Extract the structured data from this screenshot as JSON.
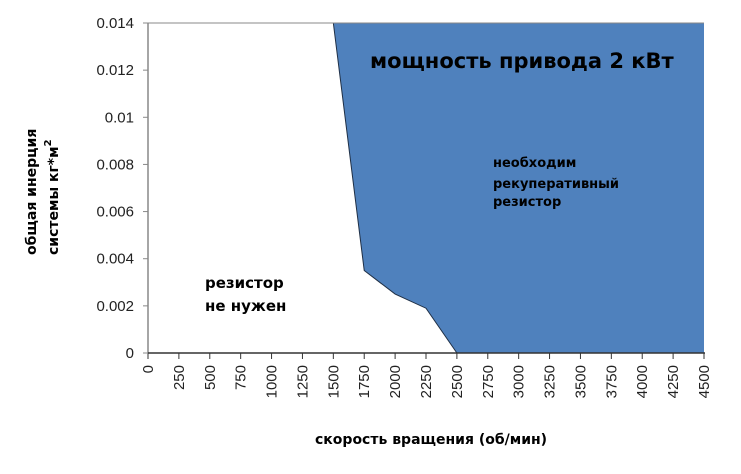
{
  "chart_data": {
    "type": "area",
    "title": "мощность привода 2 кВт",
    "xlabel": "скорость вращения (об/мин)",
    "ylabel_line1": "общая инерция",
    "ylabel_line2": "системы кг*м",
    "ylabel_sup": "2",
    "xlim": [
      0,
      4500
    ],
    "ylim": [
      0,
      0.014
    ],
    "x_ticks": [
      "0",
      "250",
      "500",
      "750",
      "1000",
      "1250",
      "1500",
      "1750",
      "2000",
      "2250",
      "2500",
      "2750",
      "3000",
      "3250",
      "3500",
      "3750",
      "4000",
      "4250",
      "4500"
    ],
    "y_ticks": [
      "0",
      "0.002",
      "0.004",
      "0.006",
      "0.008",
      "0.01",
      "0.012",
      "0.014"
    ],
    "boundary": {
      "x": [
        1500,
        1750,
        2000,
        2250,
        2500
      ],
      "y": [
        0.014,
        0.0035,
        0.0025,
        0.0019,
        0
      ]
    },
    "fill_color": "#4f81bd",
    "region_labels": {
      "filled": [
        "необходим",
        "рекуперативный",
        "резистор"
      ],
      "empty": [
        "резистор",
        "не нужен"
      ]
    },
    "grid": false,
    "legend": "none"
  }
}
